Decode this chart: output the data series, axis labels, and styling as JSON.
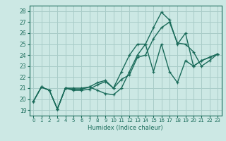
{
  "xlabel": "Humidex (Indice chaleur)",
  "bg_color": "#cce8e4",
  "grid_color": "#a8ccc8",
  "line_color": "#1a6b5a",
  "xlim": [
    -0.5,
    23.5
  ],
  "ylim": [
    18.5,
    28.5
  ],
  "xticks": [
    0,
    1,
    2,
    3,
    4,
    5,
    6,
    7,
    8,
    9,
    10,
    11,
    12,
    13,
    14,
    15,
    16,
    17,
    18,
    19,
    20,
    21,
    22,
    23
  ],
  "yticks": [
    19,
    20,
    21,
    22,
    23,
    24,
    25,
    26,
    27,
    28
  ],
  "line1_x": [
    0,
    1,
    2,
    3,
    4,
    5,
    6,
    7,
    8,
    9,
    10,
    11,
    12,
    13,
    14,
    15,
    16,
    17,
    18,
    19,
    20,
    21,
    22,
    23
  ],
  "line1_y": [
    19.8,
    21.1,
    20.8,
    19.1,
    21.0,
    20.9,
    20.9,
    21.1,
    20.8,
    20.5,
    20.4,
    21.0,
    22.5,
    24.0,
    25.0,
    22.5,
    25.0,
    22.5,
    21.5,
    23.5,
    23.0,
    23.5,
    23.8,
    24.1
  ],
  "line2_x": [
    0,
    1,
    2,
    3,
    4,
    5,
    6,
    7,
    8,
    9,
    10,
    11,
    12,
    13,
    14,
    15,
    16,
    17,
    18,
    19,
    20,
    21,
    22,
    23
  ],
  "line2_y": [
    19.8,
    21.1,
    20.8,
    19.1,
    21.0,
    21.0,
    21.0,
    21.1,
    21.5,
    21.7,
    21.0,
    22.5,
    24.0,
    25.0,
    25.0,
    26.5,
    27.9,
    27.2,
    25.0,
    26.0,
    23.0,
    23.5,
    23.8,
    24.1
  ],
  "line3_x": [
    0,
    1,
    2,
    3,
    4,
    5,
    6,
    7,
    8,
    9,
    10,
    11,
    12,
    13,
    14,
    15,
    16,
    17,
    18,
    19,
    20,
    21,
    22,
    23
  ],
  "line3_y": [
    19.8,
    21.1,
    20.8,
    19.1,
    21.0,
    20.8,
    20.8,
    20.9,
    21.3,
    21.6,
    21.0,
    21.8,
    22.2,
    23.8,
    24.0,
    25.5,
    26.5,
    27.0,
    25.1,
    25.0,
    24.3,
    23.0,
    23.5,
    24.1
  ]
}
